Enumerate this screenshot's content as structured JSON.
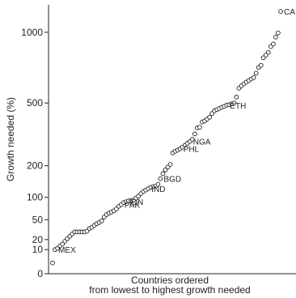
{
  "chart_data": {
    "type": "scatter",
    "title": "",
    "ylabel": "Growth needed (%)",
    "xlabel_lines": [
      "Countries ordered",
      "from lowest to highest growth needed"
    ],
    "y_ticks": [
      {
        "value": 0,
        "label": "0"
      },
      {
        "value": 10,
        "label": "10"
      },
      {
        "value": 20,
        "label": "20"
      },
      {
        "value": 50,
        "label": "50"
      },
      {
        "value": 100,
        "label": "100"
      },
      {
        "value": 200,
        "label": "200"
      },
      {
        "value": 500,
        "label": "500"
      },
      {
        "value": 1000,
        "label": "1000"
      }
    ],
    "y_scale": "sqrt",
    "ylim": [
      0,
      1240
    ],
    "xlim": [
      0,
      120
    ],
    "grid": false,
    "legend": "none",
    "marker": "hollow-circle",
    "points": [
      {
        "x": 1,
        "y": 2
      },
      {
        "x": 2,
        "y": 10,
        "label": "MEX"
      },
      {
        "x": 3,
        "y": 11
      },
      {
        "x": 4,
        "y": 13
      },
      {
        "x": 5,
        "y": 15
      },
      {
        "x": 6,
        "y": 18
      },
      {
        "x": 7,
        "y": 21
      },
      {
        "x": 8,
        "y": 24
      },
      {
        "x": 9,
        "y": 27
      },
      {
        "x": 10,
        "y": 30
      },
      {
        "x": 11,
        "y": 30
      },
      {
        "x": 12,
        "y": 30
      },
      {
        "x": 13,
        "y": 30
      },
      {
        "x": 14,
        "y": 30
      },
      {
        "x": 15,
        "y": 31
      },
      {
        "x": 16,
        "y": 35
      },
      {
        "x": 17,
        "y": 37
      },
      {
        "x": 18,
        "y": 40
      },
      {
        "x": 19,
        "y": 43
      },
      {
        "x": 20,
        "y": 45
      },
      {
        "x": 21,
        "y": 48
      },
      {
        "x": 22,
        "y": 55
      },
      {
        "x": 23,
        "y": 60
      },
      {
        "x": 24,
        "y": 63
      },
      {
        "x": 25,
        "y": 65
      },
      {
        "x": 26,
        "y": 68
      },
      {
        "x": 27,
        "y": 72
      },
      {
        "x": 28,
        "y": 78
      },
      {
        "x": 29,
        "y": 82,
        "label": "PAK"
      },
      {
        "x": 30,
        "y": 87
      },
      {
        "x": 31,
        "y": 89,
        "label": "IDN"
      },
      {
        "x": 32,
        "y": 91
      },
      {
        "x": 33,
        "y": 92
      },
      {
        "x": 34,
        "y": 93
      },
      {
        "x": 35,
        "y": 98
      },
      {
        "x": 36,
        "y": 103
      },
      {
        "x": 37,
        "y": 110
      },
      {
        "x": 38,
        "y": 116
      },
      {
        "x": 39,
        "y": 120
      },
      {
        "x": 40,
        "y": 124,
        "label": "IND"
      },
      {
        "x": 41,
        "y": 128
      },
      {
        "x": 42,
        "y": 130
      },
      {
        "x": 43,
        "y": 132
      },
      {
        "x": 44,
        "y": 137
      },
      {
        "x": 45,
        "y": 155,
        "label": "BGD"
      },
      {
        "x": 46,
        "y": 172
      },
      {
        "x": 47,
        "y": 185
      },
      {
        "x": 48,
        "y": 195
      },
      {
        "x": 49,
        "y": 205
      },
      {
        "x": 50,
        "y": 250
      },
      {
        "x": 51,
        "y": 257
      },
      {
        "x": 52,
        "y": 262
      },
      {
        "x": 53,
        "y": 268,
        "label": "PHL"
      },
      {
        "x": 54,
        "y": 275
      },
      {
        "x": 55,
        "y": 283
      },
      {
        "x": 56,
        "y": 292
      },
      {
        "x": 57,
        "y": 300,
        "label": "NGA"
      },
      {
        "x": 58,
        "y": 310
      },
      {
        "x": 59,
        "y": 335
      },
      {
        "x": 60,
        "y": 365
      },
      {
        "x": 61,
        "y": 368
      },
      {
        "x": 62,
        "y": 395
      },
      {
        "x": 63,
        "y": 400
      },
      {
        "x": 64,
        "y": 410
      },
      {
        "x": 65,
        "y": 420
      },
      {
        "x": 66,
        "y": 440
      },
      {
        "x": 67,
        "y": 455
      },
      {
        "x": 68,
        "y": 462
      },
      {
        "x": 69,
        "y": 468
      },
      {
        "x": 70,
        "y": 475
      },
      {
        "x": 71,
        "y": 480
      },
      {
        "x": 72,
        "y": 487,
        "label": "ETH"
      },
      {
        "x": 73,
        "y": 490
      },
      {
        "x": 74,
        "y": 495
      },
      {
        "x": 75,
        "y": 500
      },
      {
        "x": 76,
        "y": 535
      },
      {
        "x": 77,
        "y": 590
      },
      {
        "x": 78,
        "y": 605
      },
      {
        "x": 79,
        "y": 618
      },
      {
        "x": 80,
        "y": 630
      },
      {
        "x": 81,
        "y": 640
      },
      {
        "x": 82,
        "y": 650
      },
      {
        "x": 83,
        "y": 660
      },
      {
        "x": 84,
        "y": 690
      },
      {
        "x": 85,
        "y": 730
      },
      {
        "x": 86,
        "y": 745
      },
      {
        "x": 87,
        "y": 800
      },
      {
        "x": 88,
        "y": 820
      },
      {
        "x": 89,
        "y": 840
      },
      {
        "x": 90,
        "y": 885
      },
      {
        "x": 91,
        "y": 905
      },
      {
        "x": 92,
        "y": 960
      },
      {
        "x": 93,
        "y": 995
      },
      {
        "x": 94,
        "y": 1180,
        "label": "CA"
      }
    ]
  }
}
